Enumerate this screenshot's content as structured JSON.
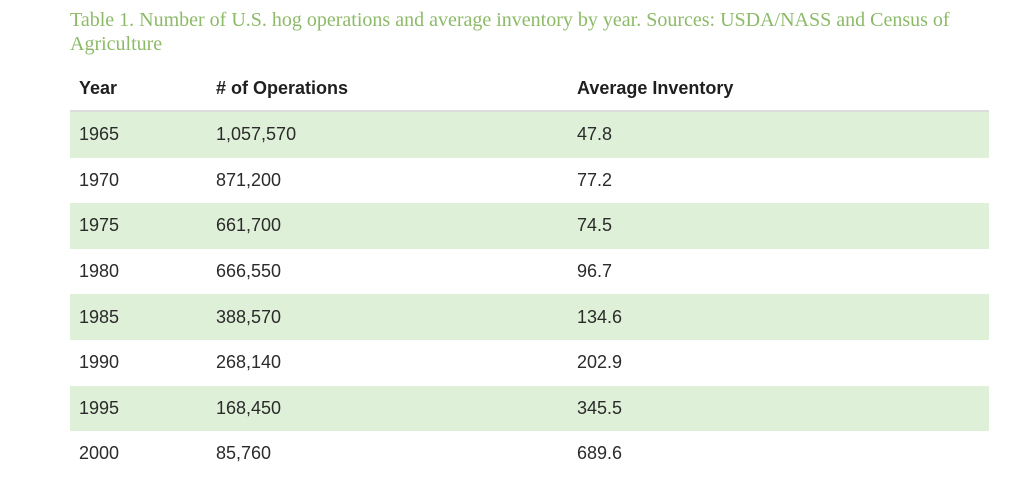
{
  "caption": "Table 1. Number of U.S. hog operations and average inventory by year. Sources: USDA/NASS and Census of Agriculture",
  "table": {
    "headers": [
      "Year",
      "# of Operations",
      "Average Inventory"
    ],
    "rows": [
      [
        "1965",
        "1,057,570",
        "47.8"
      ],
      [
        "1970",
        "871,200",
        "77.2"
      ],
      [
        "1975",
        "661,700",
        "74.5"
      ],
      [
        "1980",
        "666,550",
        "96.7"
      ],
      [
        "1985",
        "388,570",
        "134.6"
      ],
      [
        "1990",
        "268,140",
        "202.9"
      ],
      [
        "1995",
        "168,450",
        "345.5"
      ],
      [
        "2000",
        "85,760",
        "689.6"
      ]
    ]
  },
  "colors": {
    "caption_text": "#8dba68",
    "stripe_row": "#dff0d8",
    "header_rule": "#dcdcdc"
  }
}
